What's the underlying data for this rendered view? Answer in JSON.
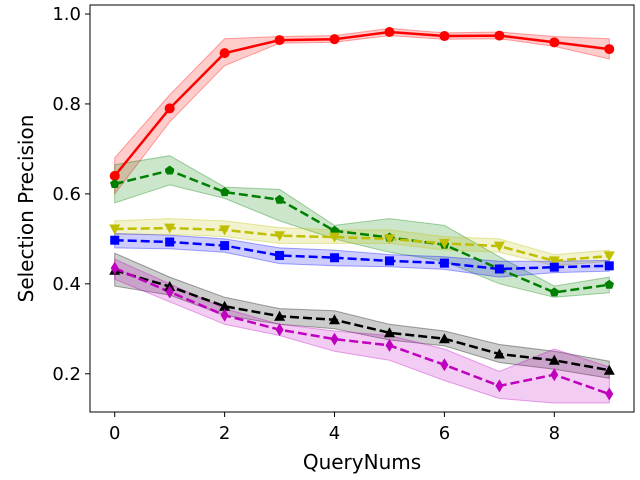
{
  "chart_data": {
    "type": "line",
    "title": "",
    "xlabel": "QueryNums",
    "ylabel": "Selection Precision",
    "xlim": [
      -0.45,
      9.45
    ],
    "ylim": [
      0.115,
      1.02
    ],
    "x": [
      0,
      1,
      2,
      3,
      4,
      5,
      6,
      7,
      8,
      9
    ],
    "xticks": [
      0,
      2,
      4,
      6,
      8
    ],
    "yticks": [
      0.2,
      0.4,
      0.6,
      0.8,
      1.0
    ],
    "ytick_labels": [
      "0.2",
      "0.4",
      "0.6",
      "0.8",
      "1.0"
    ],
    "grid": false,
    "legend": "none",
    "series": [
      {
        "color": "#ff0000",
        "marker": "circle",
        "dash": "solid",
        "values": [
          0.64,
          0.79,
          0.913,
          0.942,
          0.944,
          0.96,
          0.951,
          0.952,
          0.937,
          0.922
        ],
        "lower": [
          0.6,
          0.76,
          0.885,
          0.935,
          0.937,
          0.952,
          0.944,
          0.945,
          0.928,
          0.9
        ],
        "upper": [
          0.68,
          0.82,
          0.945,
          0.95,
          0.952,
          0.968,
          0.958,
          0.96,
          0.95,
          0.945
        ]
      },
      {
        "color": "#008000",
        "marker": "pentagon",
        "dash": "dashed",
        "values": [
          0.622,
          0.652,
          0.604,
          0.587,
          0.518,
          0.503,
          0.487,
          0.433,
          0.381,
          0.398
        ],
        "lower": [
          0.58,
          0.62,
          0.59,
          0.54,
          0.5,
          0.47,
          0.45,
          0.4,
          0.37,
          0.38
        ],
        "upper": [
          0.665,
          0.685,
          0.615,
          0.61,
          0.53,
          0.545,
          0.53,
          0.46,
          0.395,
          0.415
        ]
      },
      {
        "color": "#bfbf00",
        "marker": "triangle-down",
        "dash": "dashed",
        "values": [
          0.522,
          0.524,
          0.52,
          0.507,
          0.504,
          0.5,
          0.49,
          0.484,
          0.451,
          0.462
        ],
        "lower": [
          0.51,
          0.51,
          0.505,
          0.49,
          0.49,
          0.49,
          0.475,
          0.47,
          0.44,
          0.45
        ],
        "upper": [
          0.54,
          0.545,
          0.54,
          0.525,
          0.52,
          0.52,
          0.505,
          0.5,
          0.465,
          0.475
        ]
      },
      {
        "color": "#0000ff",
        "marker": "square",
        "dash": "dashed",
        "values": [
          0.497,
          0.493,
          0.485,
          0.463,
          0.458,
          0.451,
          0.446,
          0.433,
          0.437,
          0.44
        ],
        "lower": [
          0.48,
          0.478,
          0.47,
          0.445,
          0.44,
          0.438,
          0.432,
          0.415,
          0.425,
          0.428
        ],
        "upper": [
          0.512,
          0.508,
          0.5,
          0.48,
          0.475,
          0.465,
          0.46,
          0.45,
          0.45,
          0.452
        ]
      },
      {
        "color": "#000000",
        "marker": "triangle-up",
        "dash": "dashed",
        "values": [
          0.43,
          0.394,
          0.35,
          0.328,
          0.32,
          0.291,
          0.278,
          0.244,
          0.23,
          0.208
        ],
        "lower": [
          0.395,
          0.375,
          0.33,
          0.31,
          0.3,
          0.275,
          0.262,
          0.225,
          0.21,
          0.19
        ],
        "upper": [
          0.468,
          0.415,
          0.37,
          0.345,
          0.34,
          0.31,
          0.295,
          0.265,
          0.25,
          0.228
        ]
      },
      {
        "color": "#bf00bf",
        "marker": "diamond",
        "dash": "dashed",
        "values": [
          0.435,
          0.382,
          0.33,
          0.298,
          0.277,
          0.263,
          0.22,
          0.173,
          0.198,
          0.155
        ],
        "lower": [
          0.41,
          0.36,
          0.31,
          0.285,
          0.25,
          0.23,
          0.185,
          0.145,
          0.135,
          0.135
        ],
        "upper": [
          0.455,
          0.4,
          0.345,
          0.31,
          0.295,
          0.285,
          0.255,
          0.205,
          0.255,
          0.215
        ]
      }
    ]
  }
}
